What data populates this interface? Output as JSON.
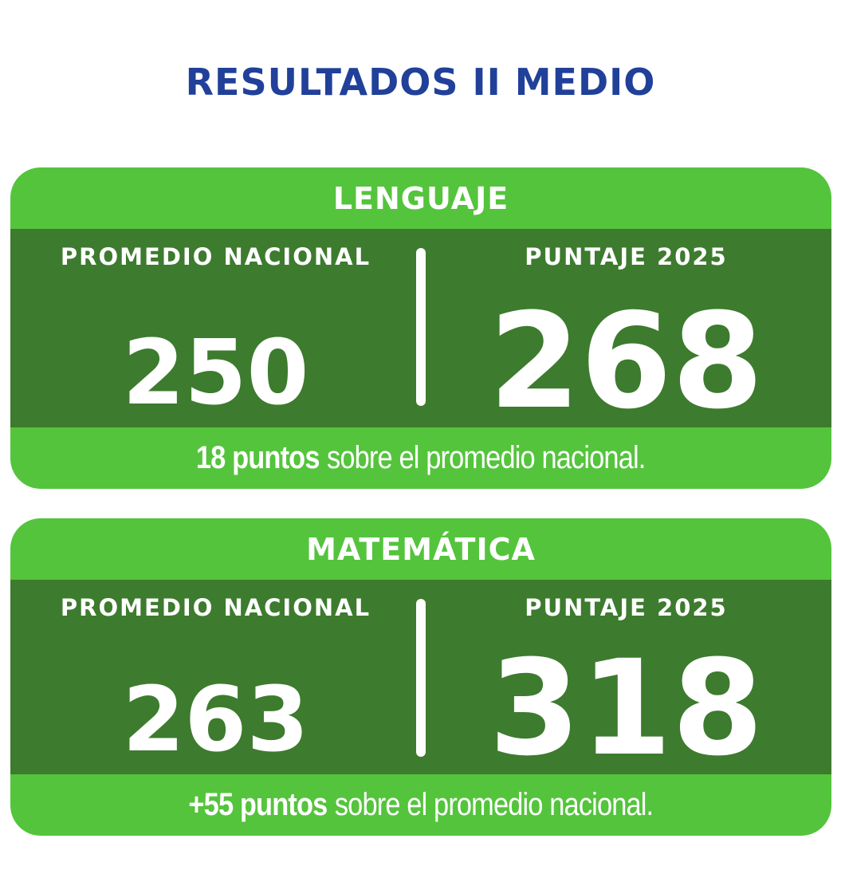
{
  "page_title": "RESULTADOS II MEDIO",
  "colors": {
    "title_blue": "#21409a",
    "light_green": "#54c43c",
    "dark_green": "#3d7b2e",
    "text_white": "#ffffff"
  },
  "cards": [
    {
      "subject": "LENGUAJE",
      "left_label": "PROMEDIO NACIONAL",
      "right_label": "PUNTAJE 2025",
      "left_value": "250",
      "right_value": "268",
      "note_bold": "18 puntos",
      "note_rest": "sobre el promedio nacional."
    },
    {
      "subject": "MATEMÁTICA",
      "left_label": "PROMEDIO NACIONAL",
      "right_label": "PUNTAJE 2025",
      "left_value": "263",
      "right_value": "318",
      "note_bold": "+55 puntos",
      "note_rest": "sobre el promedio nacional."
    }
  ],
  "chart_data": {
    "type": "table",
    "title": "RESULTADOS II MEDIO",
    "categories": [
      "LENGUAJE",
      "MATEMÁTICA"
    ],
    "series": [
      {
        "name": "PROMEDIO NACIONAL",
        "values": [
          250,
          263
        ]
      },
      {
        "name": "PUNTAJE 2025",
        "values": [
          268,
          318
        ]
      }
    ],
    "annotations": [
      "18 puntos sobre el promedio nacional.",
      "+55 puntos sobre el promedio nacional."
    ]
  }
}
